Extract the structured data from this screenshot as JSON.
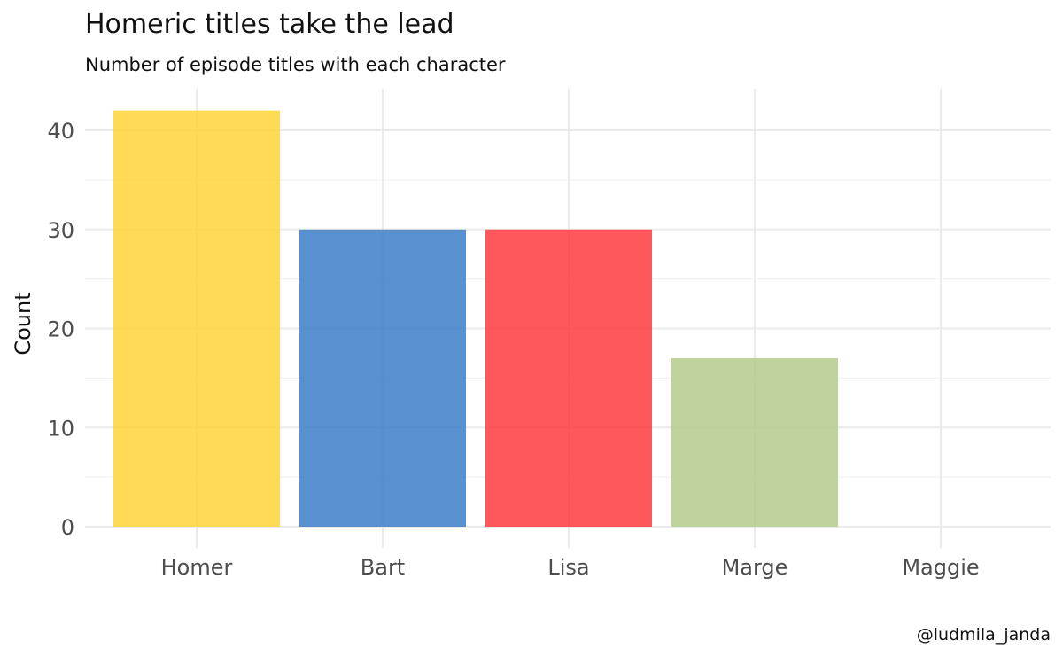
{
  "chart_data": {
    "type": "bar",
    "title": "Homeric titles take the lead",
    "subtitle": "Number of episode titles with each character",
    "xlabel": "",
    "ylabel": "Count",
    "categories": [
      "Homer",
      "Bart",
      "Lisa",
      "Marge",
      "Maggie"
    ],
    "values": [
      42,
      30,
      30,
      17,
      0
    ],
    "colors": [
      "#FED439",
      "#3B7DC8",
      "#FF3B3F",
      "#B4CB8C",
      "#CCCCCC"
    ],
    "bar_opacity": 0.85,
    "ylim": [
      0,
      44
    ],
    "yticks": [
      "0",
      "10",
      "20",
      "30",
      "40"
    ],
    "grid": true,
    "legend": "none",
    "caption": "@ludmila_janda"
  }
}
